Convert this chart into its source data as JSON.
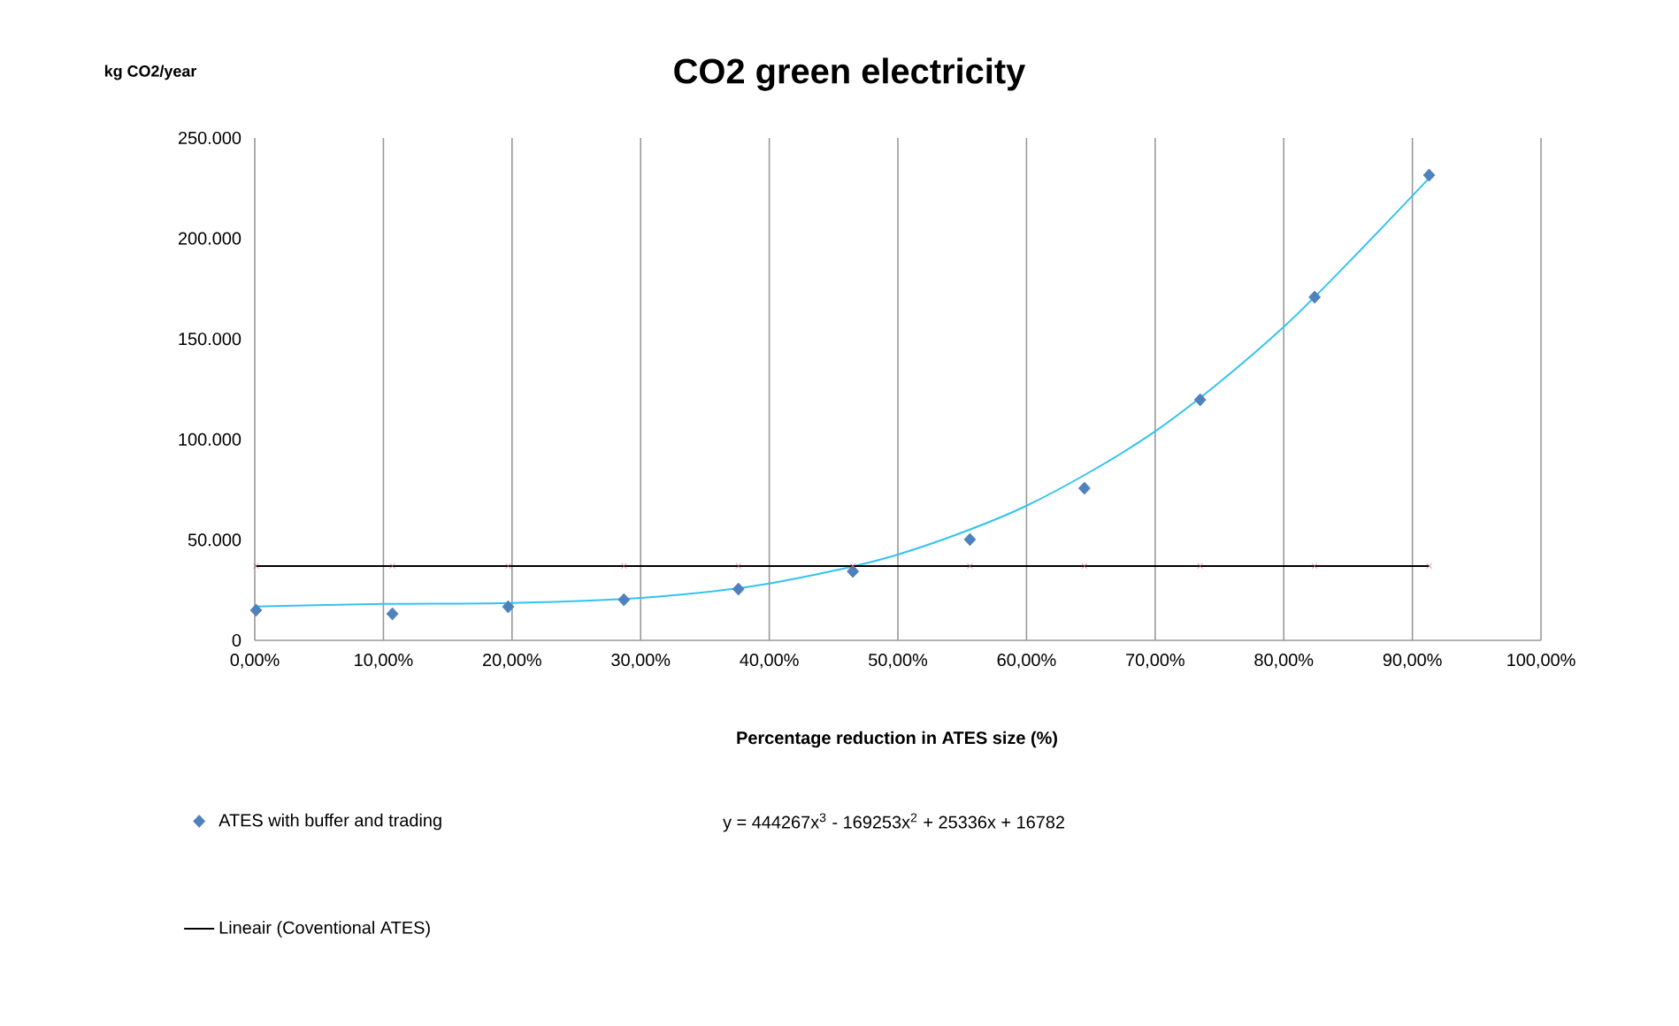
{
  "chart_data": {
    "type": "scatter",
    "title": "CO2 green electricity",
    "xlabel": "Percentage reduction in ATES size (%)",
    "ylabel": "kg CO2/year",
    "xlim": [
      0,
      100
    ],
    "ylim": [
      0,
      250000
    ],
    "xticks": [
      {
        "value": 0,
        "label": "0,00%"
      },
      {
        "value": 10,
        "label": "10,00%"
      },
      {
        "value": 20,
        "label": "20,00%"
      },
      {
        "value": 30,
        "label": "30,00%"
      },
      {
        "value": 40,
        "label": "40,00%"
      },
      {
        "value": 50,
        "label": "50,00%"
      },
      {
        "value": 60,
        "label": "60,00%"
      },
      {
        "value": 70,
        "label": "70,00%"
      },
      {
        "value": 80,
        "label": "80,00%"
      },
      {
        "value": 90,
        "label": "90,00%"
      },
      {
        "value": 100,
        "label": "100,00%"
      }
    ],
    "yticks": [
      0,
      {
        "value": 50000,
        "label": "50.000"
      },
      {
        "value": 100000,
        "label": "100.000"
      },
      {
        "value": 150000,
        "label": "150.000"
      },
      {
        "value": 200000,
        "label": "200.000"
      },
      {
        "value": 250000,
        "label": "250.000"
      }
    ],
    "grid": "x",
    "legend": "bottom left",
    "series": [
      {
        "name": "ATES with buffer and trading",
        "marker": "diamond",
        "color": "#4f81bd",
        "x": [
          0.1,
          10.7,
          19.7,
          28.7,
          37.6,
          46.5,
          55.6,
          64.5,
          73.5,
          82.4,
          91.3
        ],
        "values": [
          15000,
          13200,
          16700,
          20200,
          25500,
          34300,
          50200,
          75700,
          119700,
          170800,
          231500
        ]
      },
      {
        "type": "line",
        "marker": "none",
        "color": "#33c3f0",
        "x": [
          0,
          10,
          20,
          30,
          40,
          50,
          60,
          70,
          80,
          91.3
        ],
        "values": [
          16800,
          18100,
          18600,
          21100,
          28300,
          42700,
          67000,
          104000,
          156000,
          230000
        ]
      },
      {
        "type": "scatter",
        "marker": "cross",
        "color": "#c0504d",
        "x": [
          0.1,
          10.7,
          19.7,
          28.7,
          37.6,
          46.5,
          55.6,
          64.5,
          73.5,
          82.4,
          91.3
        ],
        "values": [
          37000,
          37000,
          37000,
          37000,
          37000,
          37000,
          37000,
          37000,
          37000,
          37000,
          37000
        ]
      },
      {
        "name": "Lineair (Coventional ATES)",
        "type": "line",
        "marker": "none",
        "color": "#000000",
        "x": [
          0.1,
          91.3
        ],
        "values": [
          37000,
          37000
        ]
      }
    ],
    "annotations": [
      "y = 444267x$^{3}$ - 169253x$^{2}$ + 25336x + 16782"
    ]
  }
}
